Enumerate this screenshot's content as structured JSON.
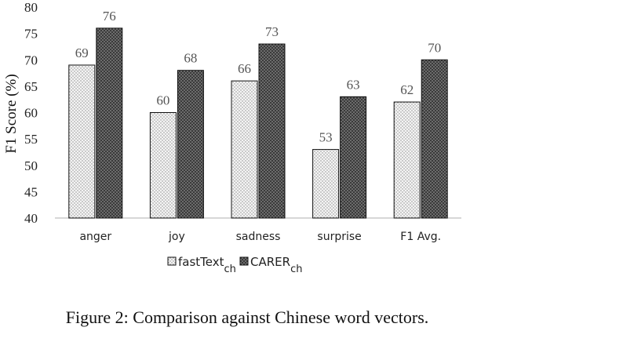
{
  "chart_data": {
    "type": "bar",
    "categories": [
      "anger",
      "joy",
      "sadness",
      "surprise",
      "F1 Avg."
    ],
    "series": [
      {
        "name": "fastText",
        "name_sub": "ch",
        "values": [
          69,
          60,
          66,
          53,
          62
        ],
        "pattern": "dots-light"
      },
      {
        "name": "CARER",
        "name_sub": "ch",
        "values": [
          76,
          68,
          73,
          63,
          70
        ],
        "pattern": "dots-dark"
      }
    ],
    "ylabel": "F1 Score (%)",
    "ylim": [
      40,
      80
    ],
    "yticks": [
      40,
      45,
      50,
      55,
      60,
      65,
      70,
      75,
      80
    ],
    "grid": false,
    "legend": "bottom",
    "data_labels": true
  },
  "caption": "Figure 2: Comparison against Chinese word vectors.",
  "colors": {
    "axis": "#bfbfbf",
    "bar_stroke": "#111111",
    "light_bg": "#f2f2f2",
    "dark_bg": "#444444"
  }
}
